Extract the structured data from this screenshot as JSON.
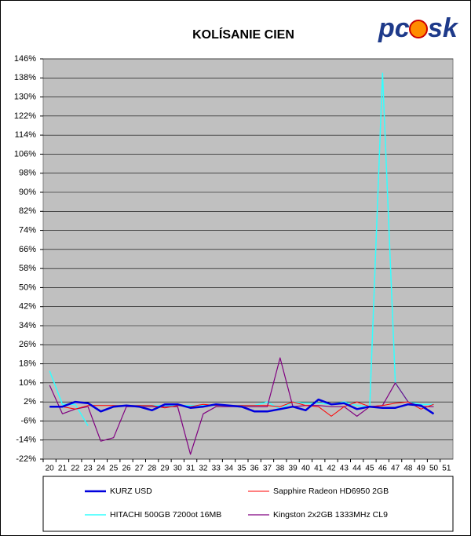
{
  "logo": {
    "left": "pc",
    "right": "sk"
  },
  "chart_data": {
    "type": "line",
    "title": "KOLÍSANIE CIEN",
    "categories": [
      "20",
      "21",
      "22",
      "23",
      "24",
      "25",
      "26",
      "27",
      "28",
      "29",
      "30",
      "31",
      "32",
      "33",
      "34",
      "35",
      "36",
      "37",
      "38",
      "39",
      "40",
      "41",
      "42",
      "43",
      "44",
      "45",
      "46",
      "47",
      "48",
      "49",
      "50",
      "51"
    ],
    "ylim": [
      -22,
      146
    ],
    "yticks": [
      {
        "value": -22,
        "label": "-22%"
      },
      {
        "value": -14,
        "label": "-14%"
      },
      {
        "value": -6,
        "label": "-6%"
      },
      {
        "value": 2,
        "label": "2%"
      },
      {
        "value": 10,
        "label": "10%"
      },
      {
        "value": 18,
        "label": "18%"
      },
      {
        "value": 26,
        "label": "26%"
      },
      {
        "value": 34,
        "label": "34%"
      },
      {
        "value": 42,
        "label": "42%"
      },
      {
        "value": 50,
        "label": "50%"
      },
      {
        "value": 58,
        "label": "58%"
      },
      {
        "value": 66,
        "label": "66%"
      },
      {
        "value": 74,
        "label": "74%"
      },
      {
        "value": 82,
        "label": "82%"
      },
      {
        "value": 90,
        "label": "90%"
      },
      {
        "value": 98,
        "label": "98%"
      },
      {
        "value": 106,
        "label": "106%"
      },
      {
        "value": 114,
        "label": "114%"
      },
      {
        "value": 122,
        "label": "122%"
      },
      {
        "value": 130,
        "label": "130%"
      },
      {
        "value": 138,
        "label": "138%"
      },
      {
        "value": 146,
        "label": "146%"
      }
    ],
    "grid": true,
    "series": [
      {
        "name": "KURZ USD",
        "color": "#0000dd",
        "width": 2.5,
        "values": [
          0,
          0,
          2,
          1.5,
          -2,
          0,
          0.5,
          0,
          -1.5,
          1,
          1,
          -0.5,
          0,
          1,
          0.5,
          0,
          -2,
          -2,
          -1,
          0,
          -1.5,
          3,
          1,
          1.5,
          -1,
          0,
          -0.5,
          -0.5,
          1,
          0.5,
          -3,
          null
        ]
      },
      {
        "name": "Sapphire Radeon HD6950 2GB",
        "color": "#ff0000",
        "width": 1,
        "values": [
          0,
          0,
          -1,
          0.5,
          0.5,
          0.5,
          0.5,
          0.5,
          0.5,
          -0.5,
          0.5,
          0,
          1,
          0.5,
          0.5,
          0.5,
          0.5,
          0.5,
          0,
          2,
          0.5,
          0,
          -4,
          0,
          2,
          0,
          0.5,
          1.5,
          2,
          -1,
          1,
          null
        ]
      },
      {
        "name": "HITACHI 500GB 7200ot 16MB",
        "color": "#33ffff",
        "width": 1.5,
        "values": [
          15,
          1,
          1,
          -8,
          null,
          0.5,
          0.5,
          0.5,
          0.5,
          0.5,
          0.5,
          0.5,
          0.5,
          0.5,
          0.5,
          0.5,
          0.5,
          2,
          -1,
          2,
          1.5,
          1.5,
          1,
          2,
          0.5,
          0,
          140,
          10,
          2,
          1,
          1,
          null
        ]
      },
      {
        "name": "Kingston 2x2GB 1333MHz CL9",
        "color": "#800080",
        "width": 1.2,
        "values": [
          9,
          -3,
          -1,
          0,
          -14.5,
          -13,
          0,
          0,
          0,
          0,
          0,
          -20,
          -3,
          0,
          0,
          0,
          0,
          0,
          20.5,
          0,
          0.5,
          0.5,
          0,
          0,
          -4,
          0,
          0.5,
          10,
          2,
          0,
          0,
          null
        ]
      }
    ]
  }
}
